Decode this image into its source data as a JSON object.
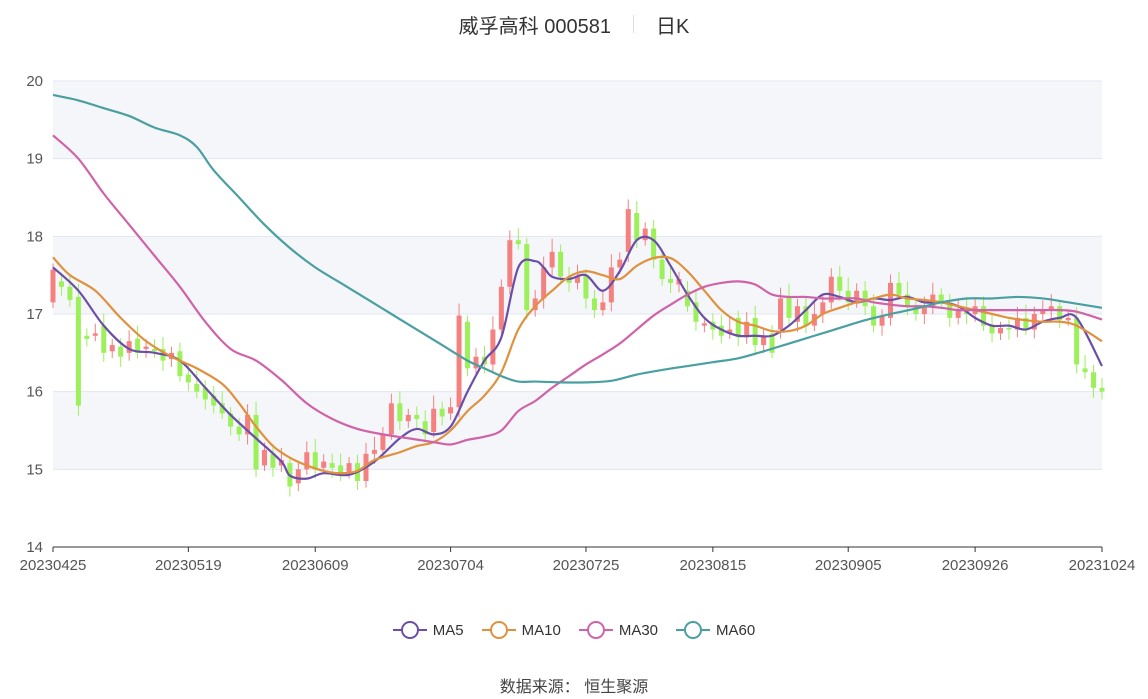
{
  "header": {
    "title": "威孚高科 000581",
    "period": "日K"
  },
  "source": "数据来源： 恒生聚源",
  "colors": {
    "up": "#f58080",
    "down": "#9cf05a",
    "band": "#f5f6fa",
    "grid": "#e0e6f1"
  },
  "chart_data": {
    "type": "candlestick",
    "ylim": [
      14,
      20
    ],
    "y_ticks": [
      14,
      15,
      16,
      17,
      18,
      19,
      20
    ],
    "x_ticks": [
      "20230425",
      "20230519",
      "20230609",
      "20230704",
      "20230725",
      "20230815",
      "20230905",
      "20230926",
      "20231024"
    ],
    "n_days": 125,
    "tick_day_index": [
      0,
      16,
      31,
      47,
      63,
      78,
      94,
      109,
      124
    ],
    "candles": [
      [
        17.15,
        17.57
      ],
      [
        17.42,
        17.35
      ],
      [
        17.35,
        17.18
      ],
      [
        17.22,
        15.82
      ],
      [
        16.72,
        16.68
      ],
      [
        16.72,
        16.75
      ],
      [
        16.85,
        16.5
      ],
      [
        16.52,
        16.6
      ],
      [
        16.58,
        16.45
      ],
      [
        16.5,
        16.65
      ],
      [
        16.68,
        16.5
      ],
      [
        16.55,
        16.58
      ],
      [
        16.55,
        16.52
      ],
      [
        16.55,
        16.4
      ],
      [
        16.42,
        16.5
      ],
      [
        16.52,
        16.2
      ],
      [
        16.22,
        16.12
      ],
      [
        16.1,
        16.0
      ],
      [
        16.05,
        15.9
      ],
      [
        15.95,
        15.82
      ],
      [
        15.85,
        15.72
      ],
      [
        15.72,
        15.55
      ],
      [
        15.55,
        15.45
      ],
      [
        15.45,
        15.7
      ],
      [
        15.7,
        15.0
      ],
      [
        15.05,
        15.25
      ],
      [
        15.2,
        15.02
      ],
      [
        15.05,
        15.12
      ],
      [
        15.08,
        14.78
      ],
      [
        14.82,
        15.0
      ],
      [
        15.0,
        15.22
      ],
      [
        15.22,
        15.0
      ],
      [
        15.02,
        15.1
      ],
      [
        15.08,
        15.02
      ],
      [
        15.05,
        14.95
      ],
      [
        14.95,
        15.08
      ],
      [
        15.08,
        14.85
      ],
      [
        14.85,
        15.2
      ],
      [
        15.2,
        15.25
      ],
      [
        15.25,
        15.45
      ],
      [
        15.45,
        15.85
      ],
      [
        15.85,
        15.62
      ],
      [
        15.62,
        15.7
      ],
      [
        15.7,
        15.65
      ],
      [
        15.62,
        15.45
      ],
      [
        15.48,
        15.78
      ],
      [
        15.78,
        15.68
      ],
      [
        15.72,
        15.8
      ],
      [
        15.8,
        16.98
      ],
      [
        16.9,
        16.3
      ],
      [
        16.3,
        16.45
      ],
      [
        16.45,
        16.35
      ],
      [
        16.35,
        16.8
      ],
      [
        16.8,
        17.35
      ],
      [
        17.35,
        17.95
      ],
      [
        17.95,
        17.9
      ],
      [
        17.9,
        17.05
      ],
      [
        17.05,
        17.2
      ],
      [
        17.2,
        17.6
      ],
      [
        17.6,
        17.8
      ],
      [
        17.8,
        17.48
      ],
      [
        17.48,
        17.4
      ],
      [
        17.4,
        17.48
      ],
      [
        17.5,
        17.2
      ],
      [
        17.2,
        17.05
      ],
      [
        17.05,
        17.15
      ],
      [
        17.15,
        17.6
      ],
      [
        17.6,
        17.7
      ],
      [
        17.8,
        18.35
      ],
      [
        18.3,
        17.95
      ],
      [
        17.95,
        18.1
      ],
      [
        18.1,
        17.7
      ],
      [
        17.7,
        17.45
      ],
      [
        17.45,
        17.4
      ],
      [
        17.38,
        17.45
      ],
      [
        17.3,
        17.1
      ],
      [
        17.15,
        16.9
      ],
      [
        16.85,
        16.88
      ],
      [
        16.9,
        16.8
      ],
      [
        16.85,
        16.72
      ],
      [
        16.75,
        16.8
      ],
      [
        16.95,
        16.7
      ],
      [
        16.7,
        16.9
      ],
      [
        16.95,
        16.6
      ],
      [
        16.6,
        16.72
      ],
      [
        16.75,
        16.5
      ],
      [
        16.8,
        17.2
      ],
      [
        17.22,
        16.95
      ],
      [
        16.9,
        17.1
      ],
      [
        17.1,
        16.85
      ],
      [
        16.85,
        17.0
      ],
      [
        17.0,
        17.15
      ],
      [
        17.15,
        17.48
      ],
      [
        17.48,
        17.3
      ],
      [
        17.3,
        17.15
      ],
      [
        17.15,
        17.3
      ],
      [
        17.3,
        17.1
      ],
      [
        17.1,
        16.85
      ],
      [
        16.85,
        16.98
      ],
      [
        16.95,
        17.4
      ],
      [
        17.4,
        17.25
      ],
      [
        17.25,
        17.1
      ],
      [
        17.1,
        17.0
      ],
      [
        17.0,
        17.1
      ],
      [
        17.1,
        17.25
      ],
      [
        17.25,
        17.15
      ],
      [
        17.15,
        16.95
      ],
      [
        16.95,
        17.05
      ],
      [
        17.05,
        17.0
      ],
      [
        17.0,
        17.1
      ],
      [
        17.1,
        16.85
      ],
      [
        16.85,
        16.75
      ],
      [
        16.75,
        16.82
      ],
      [
        16.82,
        16.8
      ],
      [
        16.8,
        16.95
      ],
      [
        16.95,
        16.8
      ],
      [
        16.8,
        17.0
      ],
      [
        17.0,
        17.05
      ],
      [
        17.05,
        17.1
      ],
      [
        17.1,
        16.92
      ],
      [
        16.92,
        16.95
      ],
      [
        16.95,
        16.35
      ],
      [
        16.3,
        16.25
      ],
      [
        16.25,
        16.05
      ],
      [
        16.05,
        16.0
      ]
    ],
    "series": [
      {
        "name": "MA5",
        "color": "#6a4ea8",
        "points": [
          [
            0,
            17.6
          ],
          [
            3,
            17.3
          ],
          [
            6,
            16.85
          ],
          [
            9,
            16.55
          ],
          [
            12,
            16.5
          ],
          [
            15,
            16.4
          ],
          [
            18,
            16.05
          ],
          [
            21,
            15.7
          ],
          [
            24,
            15.4
          ],
          [
            27,
            15.1
          ],
          [
            28,
            14.92
          ],
          [
            30,
            14.88
          ],
          [
            32,
            14.95
          ],
          [
            35,
            14.93
          ],
          [
            38,
            15.1
          ],
          [
            41,
            15.4
          ],
          [
            43,
            15.52
          ],
          [
            45,
            15.45
          ],
          [
            47,
            15.55
          ],
          [
            49,
            16.0
          ],
          [
            51,
            16.4
          ],
          [
            53,
            16.7
          ],
          [
            55,
            17.6
          ],
          [
            57,
            17.68
          ],
          [
            58,
            17.6
          ],
          [
            59,
            17.48
          ],
          [
            61,
            17.45
          ],
          [
            63,
            17.5
          ],
          [
            65,
            17.3
          ],
          [
            67,
            17.55
          ],
          [
            69,
            17.95
          ],
          [
            71,
            17.95
          ],
          [
            73,
            17.62
          ],
          [
            75,
            17.25
          ],
          [
            77,
            16.95
          ],
          [
            79,
            16.8
          ],
          [
            81,
            16.72
          ],
          [
            83,
            16.72
          ],
          [
            85,
            16.72
          ],
          [
            87,
            16.85
          ],
          [
            89,
            17.05
          ],
          [
            91,
            17.25
          ],
          [
            93,
            17.22
          ],
          [
            95,
            17.15
          ],
          [
            97,
            17.2
          ],
          [
            99,
            17.18
          ],
          [
            101,
            17.22
          ],
          [
            103,
            17.15
          ],
          [
            105,
            17.15
          ],
          [
            107,
            17.1
          ],
          [
            109,
            16.95
          ],
          [
            111,
            16.85
          ],
          [
            113,
            16.85
          ],
          [
            115,
            16.8
          ],
          [
            117,
            16.9
          ],
          [
            119,
            16.95
          ],
          [
            121,
            16.95
          ],
          [
            124,
            16.33
          ]
        ]
      },
      {
        "name": "MA10",
        "color": "#e0913e",
        "points": [
          [
            0,
            17.73
          ],
          [
            2,
            17.5
          ],
          [
            5,
            17.3
          ],
          [
            8,
            16.95
          ],
          [
            11,
            16.65
          ],
          [
            14,
            16.45
          ],
          [
            17,
            16.3
          ],
          [
            20,
            16.1
          ],
          [
            22,
            15.85
          ],
          [
            24,
            15.55
          ],
          [
            26,
            15.3
          ],
          [
            28,
            15.15
          ],
          [
            30,
            15.05
          ],
          [
            32,
            14.98
          ],
          [
            34,
            14.95
          ],
          [
            36,
            14.98
          ],
          [
            38,
            15.12
          ],
          [
            41,
            15.22
          ],
          [
            43,
            15.3
          ],
          [
            45,
            15.35
          ],
          [
            47,
            15.5
          ],
          [
            49,
            15.75
          ],
          [
            51,
            15.95
          ],
          [
            53,
            16.25
          ],
          [
            55,
            16.8
          ],
          [
            57,
            17.1
          ],
          [
            59,
            17.3
          ],
          [
            61,
            17.48
          ],
          [
            63,
            17.55
          ],
          [
            65,
            17.5
          ],
          [
            67,
            17.45
          ],
          [
            69,
            17.62
          ],
          [
            71,
            17.72
          ],
          [
            73,
            17.72
          ],
          [
            75,
            17.55
          ],
          [
            77,
            17.3
          ],
          [
            79,
            17.05
          ],
          [
            81,
            16.9
          ],
          [
            83,
            16.85
          ],
          [
            85,
            16.78
          ],
          [
            87,
            16.78
          ],
          [
            89,
            16.85
          ],
          [
            91,
            17.0
          ],
          [
            93,
            17.08
          ],
          [
            95,
            17.15
          ],
          [
            97,
            17.2
          ],
          [
            99,
            17.25
          ],
          [
            101,
            17.2
          ],
          [
            103,
            17.18
          ],
          [
            105,
            17.15
          ],
          [
            107,
            17.1
          ],
          [
            109,
            17.05
          ],
          [
            111,
            17.0
          ],
          [
            113,
            16.95
          ],
          [
            115,
            16.92
          ],
          [
            117,
            16.9
          ],
          [
            119,
            16.9
          ],
          [
            121,
            16.85
          ],
          [
            124,
            16.65
          ]
        ]
      },
      {
        "name": "MA30",
        "color": "#d063a8",
        "points": [
          [
            0,
            19.3
          ],
          [
            3,
            19.0
          ],
          [
            6,
            18.55
          ],
          [
            9,
            18.15
          ],
          [
            12,
            17.75
          ],
          [
            15,
            17.35
          ],
          [
            18,
            16.9
          ],
          [
            21,
            16.55
          ],
          [
            24,
            16.4
          ],
          [
            27,
            16.15
          ],
          [
            30,
            15.85
          ],
          [
            33,
            15.65
          ],
          [
            36,
            15.52
          ],
          [
            39,
            15.45
          ],
          [
            42,
            15.4
          ],
          [
            45,
            15.35
          ],
          [
            47,
            15.32
          ],
          [
            49,
            15.38
          ],
          [
            51,
            15.42
          ],
          [
            53,
            15.5
          ],
          [
            55,
            15.75
          ],
          [
            57,
            15.88
          ],
          [
            59,
            16.05
          ],
          [
            61,
            16.2
          ],
          [
            63,
            16.35
          ],
          [
            65,
            16.48
          ],
          [
            67,
            16.62
          ],
          [
            69,
            16.8
          ],
          [
            71,
            16.98
          ],
          [
            73,
            17.12
          ],
          [
            75,
            17.25
          ],
          [
            77,
            17.35
          ],
          [
            79,
            17.4
          ],
          [
            81,
            17.42
          ],
          [
            83,
            17.38
          ],
          [
            85,
            17.25
          ],
          [
            87,
            17.22
          ],
          [
            89,
            17.22
          ],
          [
            91,
            17.2
          ],
          [
            93,
            17.2
          ],
          [
            95,
            17.2
          ],
          [
            97,
            17.15
          ],
          [
            99,
            17.12
          ],
          [
            101,
            17.1
          ],
          [
            103,
            17.1
          ],
          [
            105,
            17.08
          ],
          [
            107,
            17.05
          ],
          [
            109,
            17.05
          ],
          [
            111,
            17.05
          ],
          [
            113,
            17.05
          ],
          [
            115,
            17.05
          ],
          [
            117,
            17.05
          ],
          [
            119,
            17.05
          ],
          [
            121,
            17.03
          ],
          [
            124,
            16.93
          ]
        ]
      },
      {
        "name": "MA60",
        "color": "#4a9fa0",
        "points": [
          [
            0,
            19.82
          ],
          [
            3,
            19.75
          ],
          [
            6,
            19.65
          ],
          [
            9,
            19.55
          ],
          [
            12,
            19.4
          ],
          [
            15,
            19.3
          ],
          [
            17,
            19.15
          ],
          [
            19,
            18.85
          ],
          [
            22,
            18.5
          ],
          [
            25,
            18.15
          ],
          [
            28,
            17.85
          ],
          [
            31,
            17.6
          ],
          [
            34,
            17.4
          ],
          [
            37,
            17.2
          ],
          [
            40,
            17.0
          ],
          [
            43,
            16.8
          ],
          [
            46,
            16.6
          ],
          [
            49,
            16.4
          ],
          [
            51,
            16.3
          ],
          [
            53,
            16.2
          ],
          [
            55,
            16.13
          ],
          [
            57,
            16.13
          ],
          [
            60,
            16.12
          ],
          [
            63,
            16.12
          ],
          [
            66,
            16.14
          ],
          [
            69,
            16.22
          ],
          [
            72,
            16.28
          ],
          [
            75,
            16.33
          ],
          [
            78,
            16.38
          ],
          [
            81,
            16.43
          ],
          [
            84,
            16.52
          ],
          [
            87,
            16.62
          ],
          [
            90,
            16.72
          ],
          [
            93,
            16.82
          ],
          [
            96,
            16.92
          ],
          [
            99,
            17.0
          ],
          [
            102,
            17.07
          ],
          [
            105,
            17.15
          ],
          [
            108,
            17.2
          ],
          [
            111,
            17.2
          ],
          [
            114,
            17.22
          ],
          [
            117,
            17.2
          ],
          [
            120,
            17.15
          ],
          [
            124,
            17.08
          ]
        ]
      }
    ]
  }
}
